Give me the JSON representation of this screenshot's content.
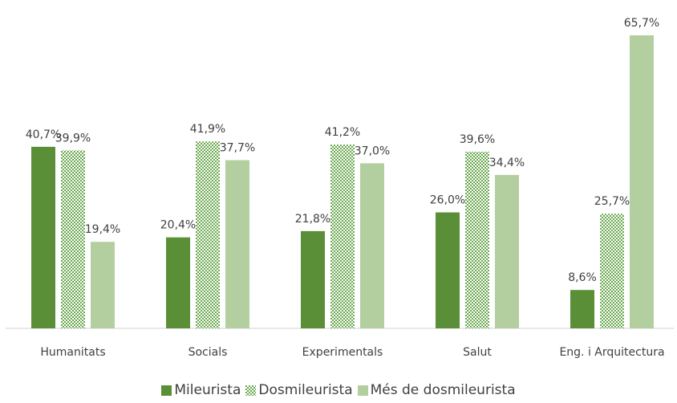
{
  "chart_data": {
    "type": "bar",
    "categories": [
      "Humanitats",
      "Socials",
      "Experimentals",
      "Salut",
      "Eng. i Arquitectura"
    ],
    "series": [
      {
        "name": "Mileurista",
        "color": "#5b8f37",
        "pattern": false,
        "values": [
          40.7,
          20.4,
          21.8,
          26.0,
          8.6
        ],
        "value_labels": [
          "40,7%",
          "20,4%",
          "21,8%",
          "26,0%",
          "8,6%"
        ]
      },
      {
        "name": "Dosmileurista",
        "color": "#6aa84f",
        "pattern": true,
        "values": [
          39.9,
          41.9,
          41.2,
          39.6,
          25.7
        ],
        "value_labels": [
          "39,9%",
          "41,9%",
          "41,2%",
          "39,6%",
          "25,7%"
        ]
      },
      {
        "name": "Més de dosmileurista",
        "color": "#b3cfa0",
        "pattern": false,
        "values": [
          19.4,
          37.7,
          37.0,
          34.4,
          65.7
        ],
        "value_labels": [
          "19,4%",
          "37,7%",
          "37,0%",
          "34,4%",
          "65,7%"
        ]
      }
    ],
    "legend": "bottom"
  }
}
